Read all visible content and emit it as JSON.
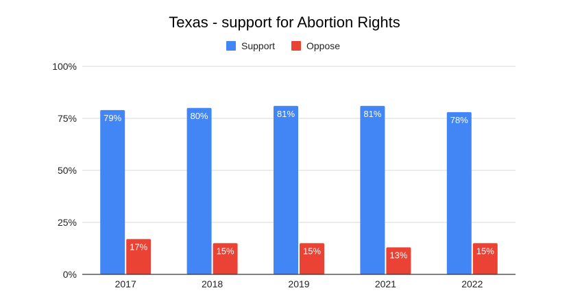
{
  "chart_data": {
    "type": "bar",
    "title": "Texas - support for Abortion Rights",
    "xlabel": "",
    "ylabel": "",
    "categories": [
      "2017",
      "2018",
      "2019",
      "2021",
      "2022"
    ],
    "series": [
      {
        "name": "Support",
        "color": "#4285f4",
        "values": [
          79,
          80,
          81,
          81,
          78
        ],
        "labels": [
          "79%",
          "80%",
          "81%",
          "81%",
          "78%"
        ]
      },
      {
        "name": "Oppose",
        "color": "#ea4335",
        "values": [
          17,
          15,
          15,
          13,
          15
        ],
        "labels": [
          "17%",
          "15%",
          "15%",
          "13%",
          "15%"
        ]
      }
    ],
    "ylim": [
      0,
      100
    ],
    "yticks": [
      0,
      25,
      50,
      75,
      100
    ],
    "ytick_labels": [
      "0%",
      "25%",
      "50%",
      "75%",
      "100%"
    ],
    "grid": true,
    "legend_position": "top-center"
  }
}
